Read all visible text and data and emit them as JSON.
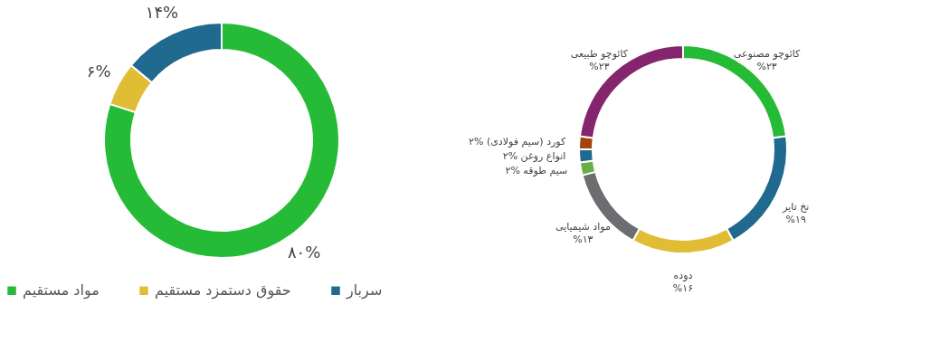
{
  "chart_data": [
    {
      "type": "donut",
      "categories": [
        "مواد مستقیم",
        "حقوق دستمزد مستقیم",
        "سربار"
      ],
      "values": [
        80,
        6,
        14
      ],
      "colors": [
        "#25bb36",
        "#e1bd35",
        "#1f6a8e"
      ],
      "value_labels": [
        "۸۰%",
        "۶%",
        "۱۴%"
      ],
      "legend": "bottom"
    },
    {
      "type": "donut",
      "categories": [
        "کائوچو مصنوعی",
        "نخ تایر",
        "دوده",
        "مواد شیمیایی",
        "سیم طوقه",
        "انواع روغن",
        "کورد (سیم فولادی)",
        "کائوچو طبیعی"
      ],
      "values": [
        23,
        19,
        16,
        13,
        2,
        2,
        2,
        23
      ],
      "colors": [
        "#25bb36",
        "#1f6a8e",
        "#e1bd35",
        "#6b6d70",
        "#6bae45",
        "#1f6a8e",
        "#a3440c",
        "#84256d"
      ],
      "value_labels": [
        "%۲۳",
        "%۱۹",
        "%۱۶",
        "%۱۳",
        "%۲",
        "%۲",
        "%۲",
        "%۲۳"
      ],
      "legend": false
    }
  ]
}
